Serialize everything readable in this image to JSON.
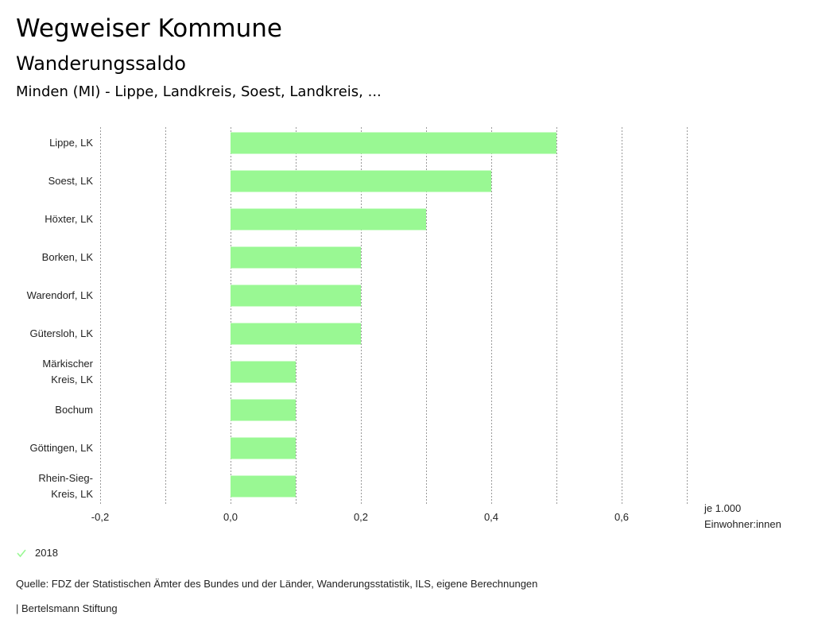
{
  "header": {
    "title": "Wegweiser Kommune",
    "subtitle": "Wanderungssaldo",
    "region": "Minden (MI) - Lippe, Landkreis, Soest, Landkreis, ..."
  },
  "chart_data": {
    "type": "bar",
    "orientation": "horizontal",
    "categories": [
      [
        "Lippe, LK"
      ],
      [
        "Soest, LK"
      ],
      [
        "Höxter, LK"
      ],
      [
        "Borken, LK"
      ],
      [
        "Warendorf, LK"
      ],
      [
        "Gütersloh, LK"
      ],
      [
        "Märkischer",
        "Kreis, LK"
      ],
      [
        "Bochum"
      ],
      [
        "Göttingen, LK"
      ],
      [
        "Rhein-Sieg-",
        "Kreis, LK"
      ]
    ],
    "series": [
      {
        "name": "2018",
        "values": [
          0.5,
          0.4,
          0.3,
          0.2,
          0.2,
          0.2,
          0.1,
          0.1,
          0.1,
          0.1
        ],
        "color": "#99f893"
      }
    ],
    "xlim": [
      -0.2,
      0.7
    ],
    "gridlines": [
      -0.2,
      -0.1,
      0.0,
      0.1,
      0.2,
      0.3,
      0.4,
      0.5,
      0.6,
      0.7
    ],
    "ticks": [
      -0.2,
      0.0,
      0.2,
      0.4,
      0.6
    ],
    "tick_labels": [
      "-0,2",
      "0,0",
      "0,2",
      "0,4",
      "0,6"
    ],
    "xlabel": [
      "je 1.000",
      "Einwohner:innen"
    ],
    "grid": true
  },
  "legend": {
    "label": "2018",
    "color": "#99f893"
  },
  "footer": {
    "source": "Quelle: FDZ der Statistischen Ämter des Bundes und der Länder, Wanderungsstatistik, ILS, eigene Berechnungen",
    "credit": "| Bertelsmann Stiftung"
  }
}
